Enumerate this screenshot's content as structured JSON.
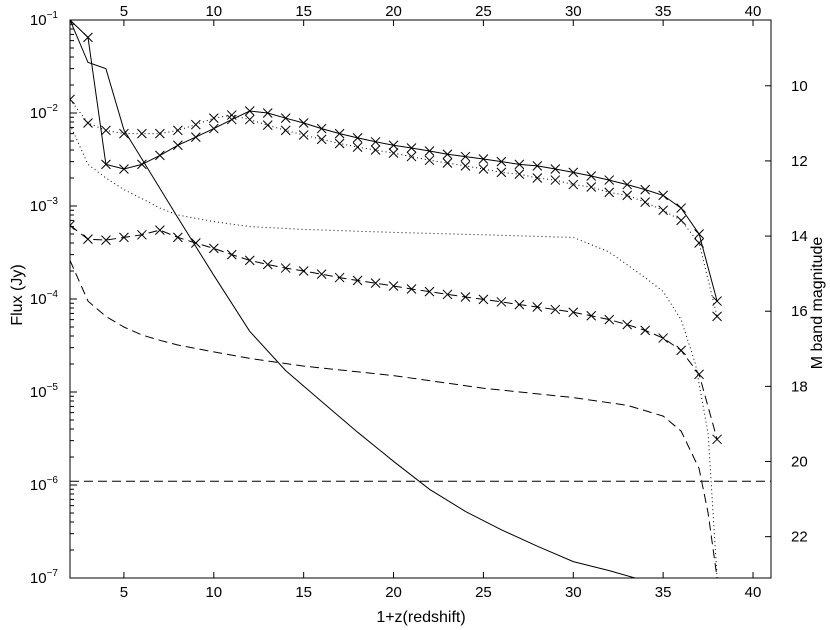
{
  "chart_data": {
    "type": "line",
    "xlabel": "1+z(redshift)",
    "ylabel": "Flux (Jy)",
    "y2label": "M band magnitude",
    "xlim": [
      2,
      41
    ],
    "ylim_log10": [
      -7,
      -1
    ],
    "yscale": "log",
    "y2lim": [
      8.25,
      23.1
    ],
    "grid": false,
    "legend": "none",
    "x_ticks": [
      "5",
      "10",
      "15",
      "20",
      "25",
      "30",
      "35",
      "40"
    ],
    "x_top_ticks": [
      "5",
      "10",
      "15",
      "20",
      "25",
      "30",
      "35",
      "40"
    ],
    "y_ticks": [
      {
        "value": 0.1,
        "base": "10",
        "exp": "−1"
      },
      {
        "value": 0.01,
        "base": "10",
        "exp": "−2"
      },
      {
        "value": 0.001,
        "base": "10",
        "exp": "−3"
      },
      {
        "value": 0.0001,
        "base": "10",
        "exp": "−4"
      },
      {
        "value": 1e-05,
        "base": "10",
        "exp": "−5"
      },
      {
        "value": 1e-06,
        "base": "10",
        "exp": "−6"
      },
      {
        "value": 1e-07,
        "base": "10",
        "exp": "−7"
      }
    ],
    "y2_ticks": [
      "10",
      "12",
      "14",
      "16",
      "18",
      "20",
      "22"
    ],
    "series": [
      {
        "style": "solid",
        "marker": "x",
        "x": [
          2,
          3,
          4,
          5,
          6,
          7,
          8,
          9,
          10,
          11,
          12,
          13,
          14,
          15,
          16,
          17,
          18,
          19,
          20,
          21,
          22,
          23,
          24,
          25,
          26,
          27,
          28,
          29,
          30,
          31,
          32,
          33,
          34,
          35,
          36,
          37,
          38
        ],
        "y": [
          0.1,
          0.065,
          0.0028,
          0.0025,
          0.0028,
          0.0035,
          0.0045,
          0.0055,
          0.0068,
          0.0085,
          0.0105,
          0.01,
          0.0088,
          0.0078,
          0.0068,
          0.006,
          0.0054,
          0.0049,
          0.0045,
          0.0042,
          0.0039,
          0.0036,
          0.0034,
          0.0032,
          0.003,
          0.0028,
          0.0027,
          0.0025,
          0.0023,
          0.0021,
          0.0019,
          0.0017,
          0.0015,
          0.0013,
          0.00095,
          0.0005,
          9.5e-05
        ]
      },
      {
        "style": "dotted",
        "marker": "x",
        "x": [
          2,
          3,
          4,
          5,
          6,
          7,
          8,
          9,
          10,
          11,
          12,
          13,
          14,
          15,
          16,
          17,
          18,
          19,
          20,
          21,
          22,
          23,
          24,
          25,
          26,
          27,
          28,
          29,
          30,
          31,
          32,
          33,
          34,
          35,
          36,
          37,
          38
        ],
        "y": [
          0.014,
          0.0078,
          0.0065,
          0.006,
          0.006,
          0.006,
          0.0065,
          0.0075,
          0.0088,
          0.0095,
          0.0085,
          0.0074,
          0.0065,
          0.0058,
          0.0052,
          0.0047,
          0.0043,
          0.004,
          0.0037,
          0.0034,
          0.0031,
          0.0029,
          0.0027,
          0.0025,
          0.0023,
          0.0022,
          0.002,
          0.0019,
          0.0017,
          0.0016,
          0.0014,
          0.0013,
          0.0011,
          0.0009,
          0.0007,
          0.0004,
          6.5e-05
        ]
      },
      {
        "style": "dashed",
        "marker": "x",
        "x": [
          2,
          3,
          4,
          5,
          6,
          7,
          8,
          9,
          10,
          11,
          12,
          13,
          14,
          15,
          16,
          17,
          18,
          19,
          20,
          21,
          22,
          23,
          24,
          25,
          26,
          27,
          28,
          29,
          30,
          31,
          32,
          33,
          34,
          35,
          36,
          37,
          38
        ],
        "y": [
          0.00062,
          0.00044,
          0.00043,
          0.00046,
          0.00049,
          0.00055,
          0.00046,
          0.0004,
          0.00035,
          0.0003,
          0.00026,
          0.000235,
          0.000215,
          0.0002,
          0.000185,
          0.00017,
          0.000158,
          0.000148,
          0.000138,
          0.000128,
          0.00012,
          0.000112,
          0.000105,
          9.9e-05,
          9.3e-05,
          8.7e-05,
          8.2e-05,
          7.7e-05,
          7.2e-05,
          6.6e-05,
          6e-05,
          5.3e-05,
          4.6e-05,
          3.8e-05,
          2.8e-05,
          1.55e-05,
          3.1e-06
        ]
      },
      {
        "style": "solid",
        "marker": "none",
        "x": [
          2,
          3,
          4,
          5,
          6,
          8,
          10,
          12,
          14,
          16,
          18,
          20,
          22,
          24,
          26,
          28,
          30,
          32,
          34
        ],
        "y": [
          0.1,
          0.035,
          0.03,
          0.0066,
          0.0032,
          0.00075,
          0.00018,
          4.5e-05,
          1.7e-05,
          7.9e-06,
          3.7e-06,
          1.8e-06,
          9e-07,
          5.2e-07,
          3.3e-07,
          2.2e-07,
          1.5e-07,
          1.2e-07,
          9.3e-08
        ]
      },
      {
        "style": "dotted",
        "marker": "none",
        "x": [
          2,
          3,
          4,
          5,
          6,
          7,
          8,
          10,
          12,
          15,
          20,
          25,
          30,
          32,
          34,
          35,
          36,
          36.8,
          37.5,
          38
        ],
        "y": [
          0.0075,
          0.0028,
          0.002,
          0.0015,
          0.0012,
          0.00095,
          0.0008,
          0.00068,
          0.0006,
          0.00056,
          0.00052,
          0.00049,
          0.00046,
          0.00032,
          0.00017,
          0.00012,
          6e-05,
          2e-05,
          3.6e-06,
          1e-07
        ]
      },
      {
        "style": "dashed",
        "marker": "none",
        "x": [
          2,
          3,
          4,
          5,
          6,
          7,
          8,
          10,
          12,
          15,
          20,
          25,
          30,
          33,
          35,
          36,
          37,
          37.5,
          38
        ],
        "y": [
          0.00026,
          9.5e-05,
          6.5e-05,
          5e-05,
          4.1e-05,
          3.6e-05,
          3.2e-05,
          2.7e-05,
          2.3e-05,
          1.9e-05,
          1.5e-05,
          1.1e-05,
          8.7e-06,
          7.2e-06,
          5.5e-06,
          3.8e-06,
          1.5e-06,
          5e-07,
          1e-07
        ]
      },
      {
        "style": "dashed",
        "marker": "none",
        "x": [
          2,
          41
        ],
        "y": [
          1.1e-06,
          1.1e-06
        ]
      }
    ]
  }
}
